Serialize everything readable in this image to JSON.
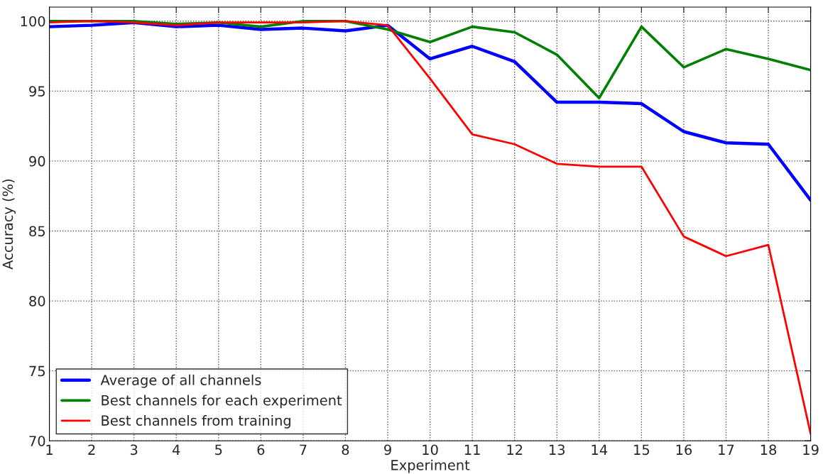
{
  "chart_data": {
    "type": "line",
    "xlabel": "Experiment",
    "ylabel": "Accuracy (%)",
    "x": [
      1,
      2,
      3,
      4,
      5,
      6,
      7,
      8,
      9,
      10,
      11,
      12,
      13,
      14,
      15,
      16,
      17,
      18,
      19
    ],
    "series": [
      {
        "name": "Average of all channels",
        "color": "#0000ff",
        "values": [
          99.6,
          99.7,
          99.9,
          99.6,
          99.7,
          99.4,
          99.5,
          99.3,
          99.7,
          97.3,
          98.2,
          97.1,
          94.2,
          94.2,
          94.1,
          92.1,
          91.3,
          91.2,
          87.2
        ]
      },
      {
        "name": "Best channels for each experiment",
        "color": "#008000",
        "values": [
          100,
          100,
          100,
          99.8,
          99.9,
          99.6,
          100,
          100,
          99.4,
          98.5,
          99.6,
          99.2,
          97.6,
          94.5,
          99.6,
          96.7,
          98.0,
          97.3,
          96.5
        ]
      },
      {
        "name": "Best channels from training",
        "color": "#ff0000",
        "values": [
          99.9,
          100,
          99.9,
          99.7,
          99.9,
          99.9,
          99.9,
          100,
          99.7,
          95.9,
          91.9,
          91.2,
          89.8,
          89.6,
          89.6,
          84.6,
          83.2,
          84.0,
          70.5
        ]
      }
    ],
    "xlim": [
      1,
      19
    ],
    "xticks": [
      1,
      2,
      3,
      4,
      5,
      6,
      7,
      8,
      9,
      10,
      11,
      12,
      13,
      14,
      15,
      16,
      17,
      18,
      19
    ],
    "ylim": [
      70,
      101
    ],
    "yticks": [
      70,
      75,
      80,
      85,
      90,
      95,
      100
    ],
    "grid": true,
    "legend": "bottom left",
    "marker": "none",
    "line_style": "solid"
  }
}
